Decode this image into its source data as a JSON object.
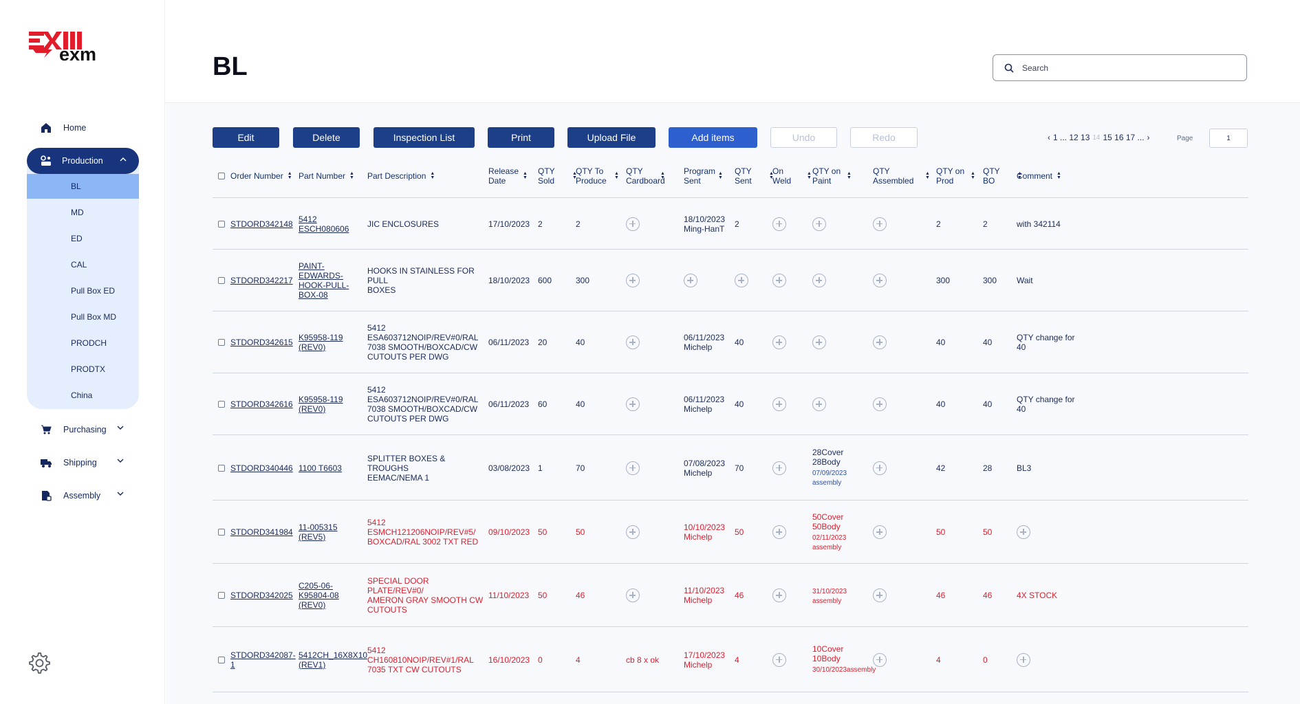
{
  "brand": {
    "name": "exm",
    "accent": "#e11d2c",
    "primary": "#1c3f87"
  },
  "sidebar": {
    "home": "Home",
    "production": "Production",
    "production_items": [
      "BL",
      "MD",
      "ED",
      "CAL",
      "Pull Box ED",
      "Pull Box MD",
      "PRODCH",
      "PRODTX",
      "China"
    ],
    "active_item": "BL",
    "purchasing": "Purchasing",
    "shipping": "Shipping",
    "assembly": "Assembly"
  },
  "header": {
    "title": "BL",
    "search_placeholder": "Search"
  },
  "toolbar": {
    "edit": "Edit",
    "delete": "Delete",
    "inspection_list": "Inspection List",
    "print": "Print",
    "upload_file": "Upload File",
    "add_items": "Add items",
    "undo": "Undo",
    "redo": "Redo"
  },
  "pagination": {
    "prev": "‹",
    "lead": "1 ... 12 13",
    "current": "14",
    "trail": "15 16 17 ...",
    "next": "›",
    "page_label": "Page",
    "page_value": "1"
  },
  "table": {
    "columns": [
      {
        "key": "order",
        "label": "Order Number"
      },
      {
        "key": "part",
        "label": "Part Number"
      },
      {
        "key": "desc",
        "label": "Part Description"
      },
      {
        "key": "release",
        "label": "Release Date"
      },
      {
        "key": "sold",
        "label": "QTY Sold"
      },
      {
        "key": "produce",
        "label": "QTY To Produce"
      },
      {
        "key": "cardboard",
        "label": "QTY Cardboard"
      },
      {
        "key": "program",
        "label": "Program Sent"
      },
      {
        "key": "sent",
        "label": "QTY Sent"
      },
      {
        "key": "weld",
        "label": "On Weld"
      },
      {
        "key": "paint",
        "label": "QTY on Paint"
      },
      {
        "key": "assembled",
        "label": "QTY Assembled"
      },
      {
        "key": "prod",
        "label": "QTY on Prod"
      },
      {
        "key": "bo",
        "label": "QTY BO"
      },
      {
        "key": "comment",
        "label": "Comment"
      }
    ],
    "rows": [
      {
        "red": false,
        "order": "STDORD342148",
        "part": "5412 ESCH080606",
        "desc": "JIC ENCLOSURES",
        "release": "17/10/2023",
        "sold": "2",
        "produce": "2",
        "cardboard": "",
        "program": "18/10/2023\nMing-HanT",
        "sent": "2",
        "weld": "",
        "paint": "",
        "paint_note": "",
        "assembled": "",
        "prod": "2",
        "bo": "2",
        "comment": "with 342114"
      },
      {
        "red": false,
        "order": "STDORD342217",
        "part": "PAINT-EDWARDS-\nHOOK-PULL-\nBOX-08",
        "desc": "HOOKS IN STAINLESS FOR PULL\nBOXES",
        "release": "18/10/2023",
        "sold": "600",
        "produce": "300",
        "cardboard": "",
        "program": "",
        "sent": "",
        "weld": "",
        "paint": "",
        "paint_note": "",
        "assembled": "",
        "prod": "300",
        "bo": "300",
        "comment": "Wait"
      },
      {
        "red": false,
        "order": "STDORD342615",
        "part": "K95958-119 (REV0)",
        "desc": "5412 ESA603712NOIP/REV#0/RAL\n7038 SMOOTH/BOXCAD/CW\nCUTOUTS PER DWG",
        "release": "06/11/2023",
        "sold": "20",
        "produce": "40",
        "cardboard": "",
        "program": "06/11/2023\nMichelp",
        "sent": "40",
        "weld": "",
        "paint": "",
        "paint_note": "",
        "assembled": "",
        "prod": "40",
        "bo": "40",
        "comment": "QTY change for\n40"
      },
      {
        "red": false,
        "order": "STDORD342616",
        "part": "K95958-119 (REV0)",
        "desc": "5412 ESA603712NOIP/REV#0/RAL\n7038 SMOOTH/BOXCAD/CW\nCUTOUTS PER DWG",
        "release": "06/11/2023",
        "sold": "60",
        "produce": "40",
        "cardboard": "",
        "program": "06/11/2023\nMichelp",
        "sent": "40",
        "weld": "",
        "paint": "",
        "paint_note": "",
        "assembled": "",
        "prod": "40",
        "bo": "40",
        "comment": "QTY change for\n40"
      },
      {
        "red": false,
        "order": "STDORD340446",
        "part": "1100 T6603",
        "desc": "SPLITTER BOXES & TROUGHS\nEEMAC/NEMA 1",
        "release": "03/08/2023",
        "sold": "1",
        "produce": "70",
        "cardboard": "",
        "program": "07/08/2023\nMichelp",
        "sent": "70",
        "weld": "",
        "paint": "28Cover\n28Body",
        "paint_note": "07/09/2023 assembly",
        "assembled": "",
        "prod": "42",
        "bo": "28",
        "comment": "BL3"
      },
      {
        "red": true,
        "order": "STDORD341984",
        "part": "11-005315 (REV5)",
        "desc": "5412 ESMCH121206NOIP/REV#5/\nBOXCAD/RAL 3002 TXT RED",
        "release": "09/10/2023",
        "sold": "50",
        "produce": "50",
        "cardboard": "",
        "program": "10/10/2023\nMichelp",
        "sent": "50",
        "weld": "",
        "paint": "50Cover\n50Body",
        "paint_note": "02/11/2023 assembly",
        "assembled": "",
        "prod": "50",
        "bo": "50",
        "comment": ""
      },
      {
        "red": true,
        "order": "STDORD342025",
        "part": "C205-06-K95804-08\n(REV0)",
        "desc": "SPECIAL DOOR PLATE/REV#0/\nAMERON GRAY SMOOTH CW\nCUTOUTS",
        "release": "11/10/2023",
        "sold": "50",
        "produce": "46",
        "cardboard": "",
        "program": "11/10/2023\nMichelp",
        "sent": "46",
        "weld": "",
        "paint": "",
        "paint_note": "31/10/2023 assembly",
        "assembled": "",
        "prod": "46",
        "bo": "46",
        "comment": "4X STOCK"
      },
      {
        "red": true,
        "order": "STDORD342087-1",
        "part": "5412CH_16X8X10\n(REV1)",
        "desc": "5412 CH160810NOIP/REV#1/RAL\n7035 TXT CW CUTOUTS",
        "release": "16/10/2023",
        "sold": "0",
        "produce": "4",
        "cardboard": "cb 8 x ok",
        "program": "17/10/2023\nMichelp",
        "sent": "4",
        "weld": "",
        "paint": "10Cover\n10Body",
        "paint_note": "30/10/2023assembly",
        "assembled": "",
        "prod": "4",
        "bo": "0",
        "comment": ""
      }
    ]
  }
}
